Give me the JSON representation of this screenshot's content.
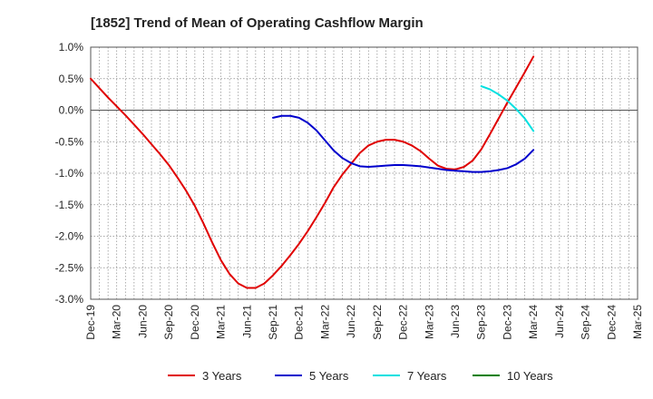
{
  "chart_data": {
    "type": "line",
    "title": "[1852]  Trend of Mean of Operating Cashflow Margin",
    "xlabel": "",
    "ylabel": "",
    "x_ticks": [
      "Dec-19",
      "Mar-20",
      "Jun-20",
      "Sep-20",
      "Dec-20",
      "Mar-21",
      "Jun-21",
      "Sep-21",
      "Dec-21",
      "Mar-22",
      "Jun-22",
      "Sep-22",
      "Dec-22",
      "Mar-23",
      "Jun-23",
      "Sep-23",
      "Dec-23",
      "Mar-24",
      "Jun-24",
      "Sep-24",
      "Dec-24",
      "Mar-25"
    ],
    "y_ticks": [
      1.0,
      0.5,
      0.0,
      -0.5,
      -1.0,
      -1.5,
      -2.0,
      -2.5,
      -3.0
    ],
    "y_tick_labels": [
      "1.0%",
      "0.5%",
      "0.0%",
      "-0.5%",
      "-1.0%",
      "-1.5%",
      "-2.0%",
      "-2.5%",
      "-3.0%"
    ],
    "ylim": [
      -3.0,
      1.0
    ],
    "grid": true,
    "legend_position": "bottom",
    "series": [
      {
        "name": "3 Years",
        "color": "#e00000",
        "x": [
          "Dec-19",
          "Jan-20",
          "Feb-20",
          "Mar-20",
          "Apr-20",
          "May-20",
          "Jun-20",
          "Jul-20",
          "Aug-20",
          "Sep-20",
          "Oct-20",
          "Nov-20",
          "Dec-20",
          "Jan-21",
          "Feb-21",
          "Mar-21",
          "Apr-21",
          "May-21",
          "Jun-21",
          "Jul-21",
          "Aug-21",
          "Sep-21",
          "Oct-21",
          "Nov-21",
          "Dec-21",
          "Jan-22",
          "Feb-22",
          "Mar-22",
          "Apr-22",
          "May-22",
          "Jun-22",
          "Jul-22",
          "Aug-22",
          "Sep-22",
          "Oct-22",
          "Nov-22",
          "Dec-22",
          "Jan-23",
          "Feb-23",
          "Mar-23",
          "Apr-23",
          "May-23",
          "Jun-23",
          "Jul-23",
          "Aug-23",
          "Sep-23",
          "Oct-23",
          "Nov-23",
          "Dec-23",
          "Jan-24",
          "Feb-24",
          "Mar-24"
        ],
        "values": [
          0.5,
          0.35,
          0.2,
          0.06,
          -0.08,
          -0.23,
          -0.38,
          -0.54,
          -0.7,
          -0.87,
          -1.07,
          -1.28,
          -1.52,
          -1.8,
          -2.1,
          -2.38,
          -2.6,
          -2.75,
          -2.82,
          -2.82,
          -2.75,
          -2.62,
          -2.47,
          -2.3,
          -2.12,
          -1.92,
          -1.7,
          -1.47,
          -1.22,
          -1.02,
          -0.85,
          -0.68,
          -0.56,
          -0.5,
          -0.47,
          -0.47,
          -0.5,
          -0.56,
          -0.65,
          -0.77,
          -0.88,
          -0.93,
          -0.94,
          -0.9,
          -0.8,
          -0.62,
          -0.38,
          -0.13,
          0.12,
          0.36,
          0.6,
          0.85
        ]
      },
      {
        "name": "5 Years",
        "color": "#0000cc",
        "x": [
          "Sep-21",
          "Oct-21",
          "Nov-21",
          "Dec-21",
          "Jan-22",
          "Feb-22",
          "Mar-22",
          "Apr-22",
          "May-22",
          "Jun-22",
          "Jul-22",
          "Aug-22",
          "Sep-22",
          "Oct-22",
          "Nov-22",
          "Dec-22",
          "Jan-23",
          "Feb-23",
          "Mar-23",
          "Apr-23",
          "May-23",
          "Jun-23",
          "Jul-23",
          "Aug-23",
          "Sep-23",
          "Oct-23",
          "Nov-23",
          "Dec-23",
          "Jan-24",
          "Feb-24",
          "Mar-24"
        ],
        "values": [
          -0.12,
          -0.09,
          -0.09,
          -0.12,
          -0.2,
          -0.32,
          -0.48,
          -0.64,
          -0.76,
          -0.84,
          -0.89,
          -0.9,
          -0.89,
          -0.88,
          -0.87,
          -0.87,
          -0.88,
          -0.89,
          -0.91,
          -0.93,
          -0.95,
          -0.96,
          -0.97,
          -0.98,
          -0.98,
          -0.97,
          -0.95,
          -0.92,
          -0.86,
          -0.77,
          -0.63
        ]
      },
      {
        "name": "7 Years",
        "color": "#00e0e0",
        "x": [
          "Sep-23",
          "Oct-23",
          "Nov-23",
          "Dec-23",
          "Jan-24",
          "Feb-24",
          "Mar-24"
        ],
        "values": [
          0.38,
          0.33,
          0.25,
          0.15,
          0.02,
          -0.13,
          -0.33
        ]
      },
      {
        "name": "10 Years",
        "color": "#008000",
        "x": [],
        "values": []
      }
    ]
  }
}
